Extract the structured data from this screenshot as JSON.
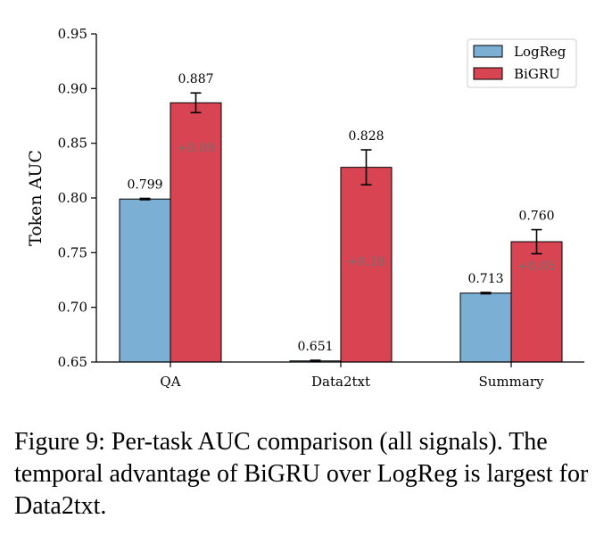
{
  "chart_data": {
    "type": "bar",
    "title": "",
    "xlabel": "",
    "ylabel": "Token AUC",
    "ylim": [
      0.65,
      0.95
    ],
    "yticks": [
      "0.65",
      "0.70",
      "0.75",
      "0.80",
      "0.85",
      "0.90",
      "0.95"
    ],
    "categories": [
      "QA",
      "Data2txt",
      "Summary"
    ],
    "series": [
      {
        "name": "LogReg",
        "color": "#7bafd4",
        "values": [
          0.799,
          0.651,
          0.713
        ],
        "errors": [
          0.0006,
          0.0006,
          0.0006
        ],
        "labels": [
          "0.799",
          "0.651",
          "0.713"
        ]
      },
      {
        "name": "BiGRU",
        "color": "#d94452",
        "values": [
          0.887,
          0.828,
          0.76
        ],
        "errors": [
          0.009,
          0.016,
          0.011
        ],
        "labels": [
          "0.887",
          "0.828",
          "0.760"
        ]
      }
    ],
    "deltas": [
      "+0.09",
      "+0.18",
      "+0.05"
    ],
    "delta_values": [
      0.846,
      0.742,
      0.738
    ],
    "legend_position": "top-right",
    "grid": false
  },
  "caption": "Figure 9: Per-task AUC comparison (all signals). The temporal advantage of BiGRU over LogReg is largest for Data2txt."
}
